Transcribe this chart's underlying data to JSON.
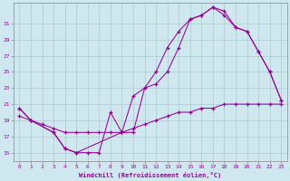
{
  "bg_color": "#cfe8f0",
  "line_color": "#990099",
  "grid_color": "#aacccc",
  "spine_color": "#888888",
  "xlabel": "Windchill (Refroidissement éolien,°C)",
  "xlim": [
    -0.5,
    23.5
  ],
  "ylim": [
    14.0,
    33.5
  ],
  "yticks": [
    15,
    17,
    19,
    21,
    23,
    25,
    27,
    29,
    31
  ],
  "xticks": [
    0,
    1,
    2,
    3,
    4,
    5,
    6,
    7,
    8,
    9,
    10,
    11,
    12,
    13,
    14,
    15,
    16,
    17,
    18,
    19,
    20,
    21,
    22,
    23
  ],
  "line1_x": [
    0,
    1,
    3,
    4,
    5,
    6,
    7,
    8,
    9,
    10,
    11,
    12,
    13,
    14,
    15,
    16,
    17,
    18,
    19,
    20,
    21,
    22,
    23
  ],
  "line1_y": [
    20.5,
    19.0,
    17.5,
    15.5,
    15.0,
    15.0,
    15.0,
    20.0,
    17.5,
    17.5,
    23.0,
    23.5,
    25.0,
    28.0,
    31.5,
    32.0,
    33.0,
    32.5,
    30.5,
    30.0,
    27.5,
    25.0,
    21.5
  ],
  "line2_x": [
    0,
    1,
    3,
    4,
    5,
    9,
    10,
    11,
    12,
    13,
    14,
    15,
    16,
    17,
    18,
    19,
    20,
    21,
    22,
    23
  ],
  "line2_y": [
    20.5,
    19.0,
    17.5,
    15.5,
    15.0,
    17.5,
    22.0,
    23.0,
    25.0,
    28.0,
    30.0,
    31.5,
    32.0,
    33.0,
    32.0,
    30.5,
    30.0,
    27.5,
    25.0,
    21.5
  ],
  "line3_x": [
    0,
    1,
    2,
    3,
    4,
    5,
    6,
    7,
    8,
    9,
    10,
    11,
    12,
    13,
    14,
    15,
    16,
    17,
    18,
    19,
    20,
    21,
    22,
    23
  ],
  "line3_y": [
    19.5,
    19.0,
    18.5,
    18.0,
    17.5,
    17.5,
    17.5,
    17.5,
    17.5,
    17.5,
    18.0,
    18.5,
    19.0,
    19.5,
    20.0,
    20.0,
    20.5,
    20.5,
    21.0,
    21.0,
    21.0,
    21.0,
    21.0,
    21.0
  ]
}
